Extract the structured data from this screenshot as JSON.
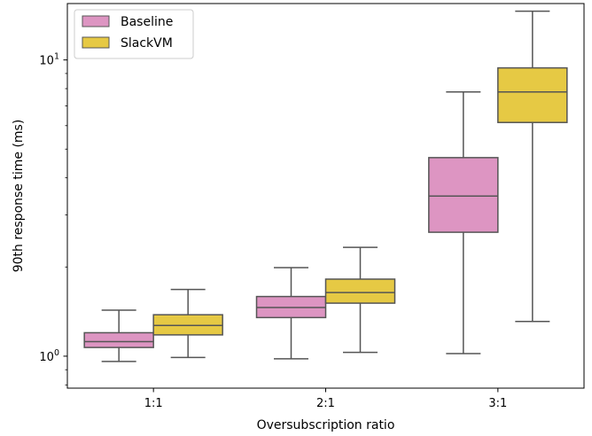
{
  "chart_data": {
    "type": "box",
    "xlabel": "Oversubscription ratio",
    "ylabel": "90th response time (ms)",
    "yscale": "log",
    "ylim": [
      0.78,
      15.5
    ],
    "categories": [
      "1:1",
      "2:1",
      "3:1"
    ],
    "y_ticks": [
      {
        "value": 1,
        "base": "10",
        "exp": "0"
      },
      {
        "value": 10,
        "base": "10",
        "exp": "1"
      }
    ],
    "legend": {
      "placement": "top-left"
    },
    "grid": false,
    "series": [
      {
        "name": "Baseline",
        "color": "#dd95c2",
        "boxes": [
          {
            "whisker_low": 0.96,
            "q1": 1.07,
            "median": 1.12,
            "q3": 1.2,
            "whisker_high": 1.43
          },
          {
            "whisker_low": 0.98,
            "q1": 1.35,
            "median": 1.46,
            "q3": 1.59,
            "whisker_high": 1.99
          },
          {
            "whisker_low": 1.02,
            "q1": 2.62,
            "median": 3.47,
            "q3": 4.68,
            "whisker_high": 7.8
          }
        ]
      },
      {
        "name": "SlackVM",
        "color": "#e6c944",
        "boxes": [
          {
            "whisker_low": 0.99,
            "q1": 1.18,
            "median": 1.27,
            "q3": 1.38,
            "whisker_high": 1.68
          },
          {
            "whisker_low": 1.03,
            "q1": 1.51,
            "median": 1.64,
            "q3": 1.82,
            "whisker_high": 2.33
          },
          {
            "whisker_low": 1.31,
            "q1": 6.15,
            "median": 7.8,
            "q3": 9.4,
            "whisker_high": 14.6
          }
        ]
      }
    ]
  }
}
